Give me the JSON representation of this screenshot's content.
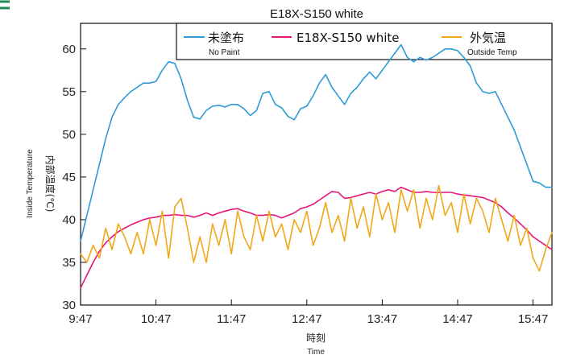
{
  "chart_data": {
    "type": "line",
    "title": "E18X-S150 white",
    "xlabel": "時刻",
    "xlabel_sub": "Time",
    "ylabel": "内部温度(℃)",
    "ylabel_sub": "Inside Temperature",
    "ylim": [
      30,
      63
    ],
    "y_ticks": [
      30,
      35,
      40,
      45,
      50,
      55,
      60
    ],
    "x_ticks": [
      "9:47",
      "10:47",
      "11:47",
      "12:47",
      "13:47",
      "14:47",
      "15:47"
    ],
    "x_range_minutes": [
      0,
      375
    ],
    "grid": false,
    "legend_placement": "top",
    "series": [
      {
        "name": "未塗布",
        "name_sub": "No Paint",
        "color": "#2e9bd6",
        "x": [
          0,
          5,
          10,
          15,
          20,
          25,
          30,
          35,
          40,
          45,
          50,
          55,
          60,
          65,
          70,
          75,
          80,
          85,
          90,
          95,
          100,
          105,
          110,
          115,
          120,
          125,
          130,
          135,
          140,
          145,
          150,
          155,
          160,
          165,
          170,
          175,
          180,
          185,
          190,
          195,
          200,
          205,
          210,
          215,
          220,
          225,
          230,
          235,
          240,
          245,
          250,
          255,
          260,
          265,
          270,
          275,
          280,
          285,
          290,
          295,
          300,
          305,
          310,
          315,
          320,
          325,
          330,
          335,
          340,
          345,
          350,
          355,
          360,
          365,
          370,
          375
        ],
        "values": [
          37.5,
          40.5,
          43.5,
          46.5,
          49.5,
          52,
          53.5,
          54.3,
          55,
          55.5,
          56,
          56,
          56.2,
          57.5,
          58.5,
          58.3,
          56.5,
          54,
          52,
          51.8,
          52.8,
          53.3,
          53.4,
          53.2,
          53.5,
          53.5,
          53,
          52.2,
          52.8,
          54.8,
          55,
          53.5,
          53.1,
          52.1,
          51.7,
          53,
          53.3,
          54.5,
          56,
          57,
          55.5,
          54.5,
          53.5,
          54.8,
          55.5,
          56.5,
          57.3,
          56.5,
          57.5,
          58.5,
          59.5,
          60.5,
          59,
          58.5,
          59,
          58.7,
          59,
          59.5,
          60,
          60,
          59.8,
          59,
          58,
          56,
          55,
          54.8,
          55,
          53.5,
          52,
          50.5,
          48.5,
          46.5,
          44.5,
          44.3,
          43.8,
          43.8
        ]
      },
      {
        "name": "E18X-S150 white",
        "color": "#e5177b",
        "x": [
          0,
          5,
          10,
          15,
          20,
          25,
          30,
          35,
          40,
          45,
          50,
          55,
          60,
          65,
          70,
          75,
          80,
          85,
          90,
          95,
          100,
          105,
          110,
          115,
          120,
          125,
          130,
          135,
          140,
          145,
          150,
          155,
          160,
          165,
          170,
          175,
          180,
          185,
          190,
          195,
          200,
          205,
          210,
          215,
          220,
          225,
          230,
          235,
          240,
          245,
          250,
          255,
          260,
          265,
          270,
          275,
          280,
          285,
          290,
          295,
          300,
          305,
          310,
          315,
          320,
          325,
          330,
          335,
          340,
          345,
          350,
          355,
          360,
          365,
          370,
          375
        ],
        "values": [
          32,
          33.5,
          35,
          36.3,
          37.3,
          38,
          38.6,
          39,
          39.4,
          39.7,
          40,
          40.2,
          40.3,
          40.5,
          40.5,
          40.6,
          40.5,
          40.5,
          40.3,
          40.5,
          40.8,
          40.5,
          40.8,
          41,
          41.2,
          41.3,
          41,
          40.8,
          40.5,
          40.5,
          40.6,
          40.5,
          40.2,
          40.5,
          40.8,
          41.3,
          41.5,
          41.8,
          42.3,
          42.8,
          43.3,
          43.2,
          42.5,
          42.6,
          42.8,
          43,
          43.2,
          43,
          43.3,
          43.5,
          43.3,
          43.8,
          43.5,
          43.2,
          43.2,
          43.3,
          43.2,
          43.2,
          43.2,
          43.2,
          43,
          42.9,
          42.8,
          42.7,
          42.6,
          42.3,
          42,
          41.5,
          40.8,
          40.2,
          39.5,
          38.8,
          38,
          37.5,
          37,
          36.5
        ]
      },
      {
        "name": "外気温",
        "name_sub": "Outside Temp",
        "color": "#f0a818",
        "x": [
          0,
          5,
          10,
          15,
          20,
          25,
          30,
          35,
          40,
          45,
          50,
          55,
          60,
          65,
          70,
          75,
          80,
          85,
          90,
          95,
          100,
          105,
          110,
          115,
          120,
          125,
          130,
          135,
          140,
          145,
          150,
          155,
          160,
          165,
          170,
          175,
          180,
          185,
          190,
          195,
          200,
          205,
          210,
          215,
          220,
          225,
          230,
          235,
          240,
          245,
          250,
          255,
          260,
          265,
          270,
          275,
          280,
          285,
          290,
          295,
          300,
          305,
          310,
          315,
          320,
          325,
          330,
          335,
          340,
          345,
          350,
          355,
          360,
          365,
          370,
          375
        ],
        "values": [
          36,
          35,
          37,
          35.5,
          39,
          36.5,
          39.5,
          38,
          36,
          38.5,
          36,
          40,
          37,
          41,
          35.5,
          41.5,
          42.5,
          39,
          35,
          38,
          35,
          39.5,
          37,
          40,
          36,
          41,
          38,
          36.5,
          40.5,
          37.5,
          41,
          38,
          39.5,
          36.5,
          40,
          38.5,
          41,
          37,
          39,
          42,
          38.5,
          40.5,
          37.5,
          42.5,
          39,
          41.5,
          38,
          43,
          40,
          42,
          38.5,
          43.5,
          41,
          43.5,
          39,
          42.5,
          40,
          44,
          40.5,
          42,
          38.5,
          43,
          39.5,
          42.5,
          41,
          38.5,
          42.5,
          40,
          37.5,
          40.5,
          37,
          39,
          35.5,
          34,
          36.5,
          38.5
        ]
      }
    ]
  }
}
